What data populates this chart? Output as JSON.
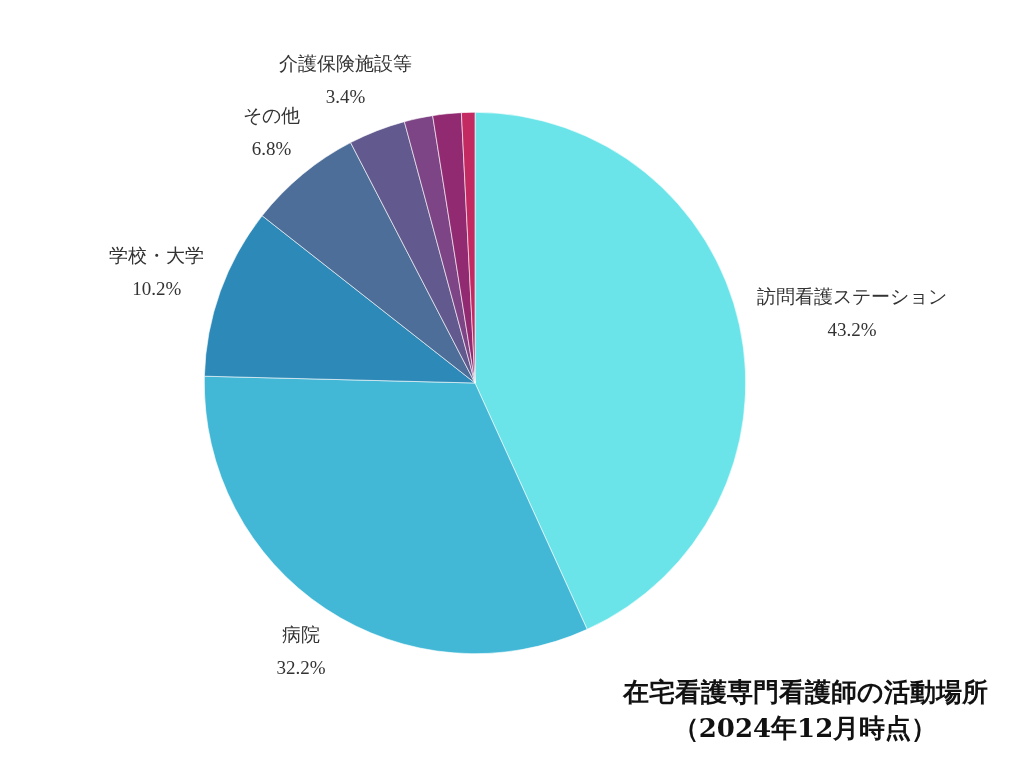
{
  "chart_data": {
    "type": "pie",
    "title": "在宅看護専門看護師の活動場所",
    "subtitle": "（2024年12月時点）",
    "categories": [
      "訪問看護ステーション",
      "病院",
      "学校・大学",
      "その他",
      "介護保険施設等",
      null,
      null,
      null
    ],
    "values": [
      43.2,
      32.2,
      10.2,
      6.8,
      3.4,
      1.7,
      1.7,
      0.8
    ],
    "colors": [
      "#6ae4e8",
      "#42b8d6",
      "#2d8ab8",
      "#4d6e98",
      "#625a8e",
      "#7d4585",
      "#922a72",
      "#c42a62"
    ],
    "value_labels": [
      "43.2%",
      "32.2%",
      "10.2%",
      "6.8%",
      "3.4%",
      null,
      null,
      null
    ]
  }
}
